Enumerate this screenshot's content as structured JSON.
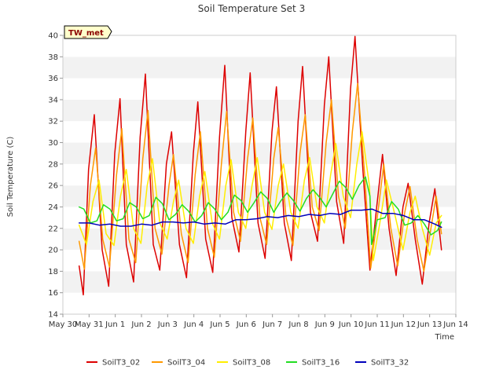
{
  "chart_data": {
    "type": "line",
    "title": "Soil Temperature Set 3",
    "xlabel": "Time",
    "ylabel": "Soil Temperature (C)",
    "badge": "TW_met",
    "ylim": [
      14,
      40
    ],
    "yticks": [
      14,
      16,
      18,
      20,
      22,
      24,
      26,
      28,
      30,
      32,
      34,
      36,
      38,
      40
    ],
    "xlim": [
      0,
      15
    ],
    "x_unit": "days from May 30",
    "xticks": [
      {
        "x": 0,
        "label": "May 30"
      },
      {
        "x": 1,
        "label": "May 31"
      },
      {
        "x": 2,
        "label": "Jun 1"
      },
      {
        "x": 3,
        "label": "Jun 2"
      },
      {
        "x": 4,
        "label": "Jun 3"
      },
      {
        "x": 5,
        "label": "Jun 4"
      },
      {
        "x": 6,
        "label": "Jun 5"
      },
      {
        "x": 7,
        "label": "Jun 6"
      },
      {
        "x": 8,
        "label": "Jun 7"
      },
      {
        "x": 9,
        "label": "Jun 8"
      },
      {
        "x": 10,
        "label": "Jun 9"
      },
      {
        "x": 11,
        "label": "Jun 10"
      },
      {
        "x": 12,
        "label": "Jun 11"
      },
      {
        "x": 13,
        "label": "Jun 12"
      },
      {
        "x": 14,
        "label": "Jun 13"
      },
      {
        "x": 15,
        "label": "Jun 14"
      }
    ],
    "grid": "horizontal bands",
    "legend_position": "bottom",
    "colors": {
      "SoilT3_02": "#dd0000",
      "SoilT3_04": "#ff9900",
      "SoilT3_08": "#ffee00",
      "SoilT3_16": "#22dd22",
      "SoilT3_32": "#0000bb"
    },
    "series": [
      {
        "name": "SoilT3_02",
        "color": "#dd0000",
        "points": [
          [
            0.62,
            18.5
          ],
          [
            0.78,
            15.8
          ],
          [
            0.98,
            27.5
          ],
          [
            1.2,
            32.6
          ],
          [
            1.5,
            20.0
          ],
          [
            1.75,
            16.6
          ],
          [
            1.98,
            29.0
          ],
          [
            2.18,
            34.1
          ],
          [
            2.42,
            20.5
          ],
          [
            2.7,
            17.0
          ],
          [
            2.95,
            30.5
          ],
          [
            3.15,
            36.4
          ],
          [
            3.45,
            20.5
          ],
          [
            3.7,
            18.1
          ],
          [
            3.95,
            28.0
          ],
          [
            4.15,
            31.0
          ],
          [
            4.45,
            20.5
          ],
          [
            4.72,
            17.4
          ],
          [
            4.98,
            29.0
          ],
          [
            5.15,
            33.8
          ],
          [
            5.45,
            21.0
          ],
          [
            5.72,
            17.9
          ],
          [
            5.98,
            30.5
          ],
          [
            6.18,
            37.2
          ],
          [
            6.45,
            23.0
          ],
          [
            6.72,
            19.8
          ],
          [
            6.98,
            31.0
          ],
          [
            7.15,
            36.5
          ],
          [
            7.45,
            22.5
          ],
          [
            7.72,
            19.2
          ],
          [
            7.98,
            31.0
          ],
          [
            8.15,
            35.2
          ],
          [
            8.45,
            22.5
          ],
          [
            8.72,
            19.0
          ],
          [
            8.98,
            32.0
          ],
          [
            9.15,
            37.1
          ],
          [
            9.45,
            23.5
          ],
          [
            9.72,
            20.8
          ],
          [
            9.98,
            33.5
          ],
          [
            10.15,
            38.0
          ],
          [
            10.45,
            24.5
          ],
          [
            10.72,
            20.6
          ],
          [
            10.98,
            35.0
          ],
          [
            11.15,
            39.9
          ],
          [
            11.45,
            27.5
          ],
          [
            11.72,
            18.1
          ],
          [
            11.98,
            24.0
          ],
          [
            12.2,
            28.9
          ],
          [
            12.45,
            22.0
          ],
          [
            12.72,
            17.6
          ],
          [
            12.98,
            24.0
          ],
          [
            13.18,
            26.2
          ],
          [
            13.45,
            21.0
          ],
          [
            13.72,
            16.8
          ],
          [
            13.98,
            22.5
          ],
          [
            14.2,
            25.7
          ],
          [
            14.45,
            20.0
          ]
        ]
      },
      {
        "name": "SoilT3_04",
        "color": "#ff9900",
        "points": [
          [
            0.62,
            20.8
          ],
          [
            0.82,
            18.2
          ],
          [
            1.05,
            26.0
          ],
          [
            1.25,
            29.5
          ],
          [
            1.52,
            21.0
          ],
          [
            1.78,
            18.4
          ],
          [
            2.05,
            27.0
          ],
          [
            2.25,
            31.3
          ],
          [
            2.52,
            21.0
          ],
          [
            2.78,
            18.8
          ],
          [
            3.05,
            28.5
          ],
          [
            3.25,
            33.0
          ],
          [
            3.52,
            22.0
          ],
          [
            3.78,
            19.6
          ],
          [
            4.05,
            26.0
          ],
          [
            4.22,
            28.9
          ],
          [
            4.52,
            21.5
          ],
          [
            4.78,
            18.8
          ],
          [
            5.05,
            27.0
          ],
          [
            5.25,
            31.0
          ],
          [
            5.52,
            22.0
          ],
          [
            5.78,
            19.3
          ],
          [
            6.05,
            28.0
          ],
          [
            6.25,
            32.9
          ],
          [
            6.52,
            23.5
          ],
          [
            6.78,
            20.8
          ],
          [
            7.05,
            28.5
          ],
          [
            7.25,
            32.3
          ],
          [
            7.52,
            23.0
          ],
          [
            7.78,
            20.5
          ],
          [
            8.05,
            28.5
          ],
          [
            8.22,
            31.4
          ],
          [
            8.52,
            23.0
          ],
          [
            8.78,
            20.4
          ],
          [
            9.05,
            29.0
          ],
          [
            9.25,
            32.6
          ],
          [
            9.52,
            24.0
          ],
          [
            9.78,
            21.8
          ],
          [
            10.05,
            30.0
          ],
          [
            10.25,
            34.0
          ],
          [
            10.52,
            25.0
          ],
          [
            10.78,
            22.0
          ],
          [
            11.05,
            31.0
          ],
          [
            11.25,
            35.5
          ],
          [
            11.52,
            27.0
          ],
          [
            11.75,
            18.3
          ],
          [
            12.05,
            24.0
          ],
          [
            12.25,
            28.0
          ],
          [
            12.52,
            22.0
          ],
          [
            12.78,
            18.5
          ],
          [
            13.05,
            23.5
          ],
          [
            13.25,
            25.9
          ],
          [
            13.52,
            21.0
          ],
          [
            13.78,
            18.0
          ],
          [
            14.05,
            22.0
          ],
          [
            14.25,
            25.0
          ],
          [
            14.45,
            21.5
          ]
        ]
      },
      {
        "name": "SoilT3_08",
        "color": "#ffee00",
        "points": [
          [
            0.62,
            22.3
          ],
          [
            0.9,
            20.5
          ],
          [
            1.15,
            24.5
          ],
          [
            1.38,
            26.5
          ],
          [
            1.65,
            21.5
          ],
          [
            1.95,
            20.4
          ],
          [
            2.2,
            25.0
          ],
          [
            2.42,
            27.5
          ],
          [
            2.7,
            22.0
          ],
          [
            2.98,
            20.6
          ],
          [
            3.22,
            26.0
          ],
          [
            3.42,
            28.5
          ],
          [
            3.7,
            22.5
          ],
          [
            3.98,
            21.0
          ],
          [
            4.22,
            24.5
          ],
          [
            4.42,
            26.5
          ],
          [
            4.7,
            22.0
          ],
          [
            4.98,
            20.6
          ],
          [
            5.22,
            25.0
          ],
          [
            5.42,
            27.3
          ],
          [
            5.7,
            22.5
          ],
          [
            5.98,
            21.0
          ],
          [
            6.22,
            26.0
          ],
          [
            6.42,
            28.4
          ],
          [
            6.7,
            23.5
          ],
          [
            6.98,
            22.0
          ],
          [
            7.22,
            26.0
          ],
          [
            7.42,
            28.6
          ],
          [
            7.7,
            23.5
          ],
          [
            7.98,
            21.9
          ],
          [
            8.22,
            26.0
          ],
          [
            8.42,
            28.0
          ],
          [
            8.7,
            23.5
          ],
          [
            8.98,
            22.0
          ],
          [
            9.22,
            26.5
          ],
          [
            9.42,
            28.6
          ],
          [
            9.7,
            24.0
          ],
          [
            9.98,
            22.5
          ],
          [
            10.22,
            27.0
          ],
          [
            10.42,
            29.9
          ],
          [
            10.7,
            25.0
          ],
          [
            10.98,
            23.0
          ],
          [
            11.22,
            28.0
          ],
          [
            11.42,
            31.0
          ],
          [
            11.7,
            26.0
          ],
          [
            11.85,
            19.0
          ],
          [
            12.1,
            22.5
          ],
          [
            12.35,
            26.5
          ],
          [
            12.7,
            23.0
          ],
          [
            12.98,
            20.0
          ],
          [
            13.25,
            23.5
          ],
          [
            13.45,
            25.0
          ],
          [
            13.72,
            22.0
          ],
          [
            14.0,
            19.5
          ],
          [
            14.25,
            22.5
          ],
          [
            14.45,
            23.2
          ]
        ]
      },
      {
        "name": "SoilT3_16",
        "color": "#22dd22",
        "points": [
          [
            0.62,
            24.0
          ],
          [
            0.8,
            23.8
          ],
          [
            1.05,
            22.5
          ],
          [
            1.3,
            22.7
          ],
          [
            1.55,
            24.2
          ],
          [
            1.8,
            23.8
          ],
          [
            2.05,
            22.7
          ],
          [
            2.3,
            22.9
          ],
          [
            2.55,
            24.4
          ],
          [
            2.8,
            24.0
          ],
          [
            3.05,
            22.9
          ],
          [
            3.3,
            23.2
          ],
          [
            3.55,
            24.9
          ],
          [
            3.8,
            24.3
          ],
          [
            4.05,
            22.8
          ],
          [
            4.3,
            23.3
          ],
          [
            4.55,
            24.2
          ],
          [
            4.8,
            23.6
          ],
          [
            5.05,
            22.6
          ],
          [
            5.3,
            23.2
          ],
          [
            5.55,
            24.4
          ],
          [
            5.8,
            23.8
          ],
          [
            6.05,
            22.8
          ],
          [
            6.3,
            23.5
          ],
          [
            6.55,
            25.1
          ],
          [
            6.8,
            24.6
          ],
          [
            7.05,
            23.5
          ],
          [
            7.3,
            24.4
          ],
          [
            7.55,
            25.4
          ],
          [
            7.8,
            24.8
          ],
          [
            8.05,
            23.5
          ],
          [
            8.3,
            24.5
          ],
          [
            8.55,
            25.3
          ],
          [
            8.8,
            24.6
          ],
          [
            9.05,
            23.6
          ],
          [
            9.3,
            24.8
          ],
          [
            9.55,
            25.6
          ],
          [
            9.8,
            24.9
          ],
          [
            10.05,
            24.0
          ],
          [
            10.3,
            25.2
          ],
          [
            10.55,
            26.4
          ],
          [
            10.8,
            25.8
          ],
          [
            11.05,
            24.7
          ],
          [
            11.3,
            26.0
          ],
          [
            11.55,
            26.8
          ],
          [
            11.72,
            25.0
          ],
          [
            11.78,
            20.5
          ],
          [
            12.0,
            22.8
          ],
          [
            12.3,
            23.0
          ],
          [
            12.55,
            24.5
          ],
          [
            12.8,
            23.8
          ],
          [
            13.05,
            22.3
          ],
          [
            13.3,
            22.5
          ],
          [
            13.55,
            23.2
          ],
          [
            13.8,
            22.4
          ],
          [
            14.05,
            21.4
          ],
          [
            14.3,
            21.8
          ],
          [
            14.45,
            22.6
          ]
        ]
      },
      {
        "name": "SoilT3_32",
        "color": "#0000bb",
        "points": [
          [
            0.62,
            22.5
          ],
          [
            1.0,
            22.5
          ],
          [
            1.4,
            22.3
          ],
          [
            1.8,
            22.4
          ],
          [
            2.2,
            22.2
          ],
          [
            2.6,
            22.2
          ],
          [
            3.0,
            22.4
          ],
          [
            3.4,
            22.3
          ],
          [
            3.8,
            22.6
          ],
          [
            4.2,
            22.6
          ],
          [
            4.6,
            22.5
          ],
          [
            5.0,
            22.6
          ],
          [
            5.4,
            22.4
          ],
          [
            5.8,
            22.5
          ],
          [
            6.2,
            22.4
          ],
          [
            6.6,
            22.8
          ],
          [
            7.0,
            22.8
          ],
          [
            7.4,
            22.9
          ],
          [
            7.8,
            23.1
          ],
          [
            8.2,
            23.0
          ],
          [
            8.6,
            23.2
          ],
          [
            9.0,
            23.1
          ],
          [
            9.4,
            23.3
          ],
          [
            9.8,
            23.2
          ],
          [
            10.2,
            23.4
          ],
          [
            10.6,
            23.3
          ],
          [
            11.0,
            23.7
          ],
          [
            11.4,
            23.7
          ],
          [
            11.8,
            23.8
          ],
          [
            12.2,
            23.4
          ],
          [
            12.6,
            23.4
          ],
          [
            13.0,
            23.2
          ],
          [
            13.4,
            22.8
          ],
          [
            13.8,
            22.8
          ],
          [
            14.2,
            22.4
          ],
          [
            14.45,
            22.1
          ]
        ]
      }
    ]
  }
}
